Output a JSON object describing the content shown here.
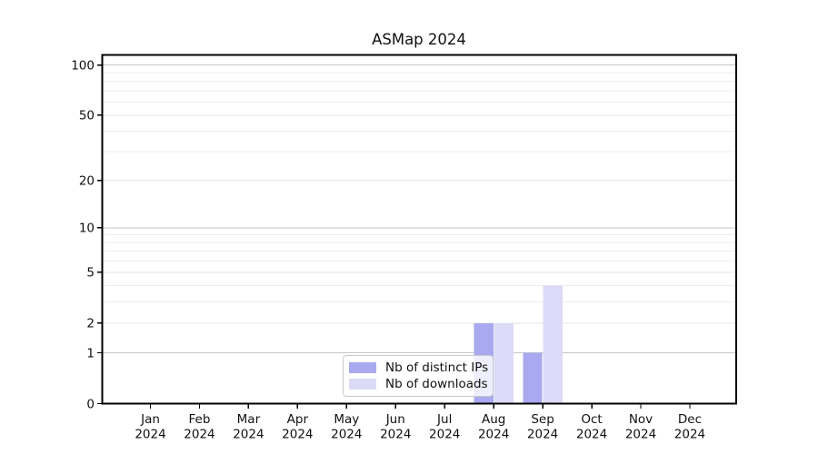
{
  "figure": {
    "title": "ASMap 2024"
  },
  "chart_data": {
    "type": "bar",
    "title": "ASMap 2024",
    "categories": [
      "Jan 2024",
      "Feb 2024",
      "Mar 2024",
      "Apr 2024",
      "May 2024",
      "Jun 2024",
      "Jul 2024",
      "Aug 2024",
      "Sep 2024",
      "Oct 2024",
      "Nov 2024",
      "Dec 2024"
    ],
    "month_labels": [
      "Jan",
      "Feb",
      "Mar",
      "Apr",
      "May",
      "Jun",
      "Jul",
      "Aug",
      "Sep",
      "Oct",
      "Nov",
      "Dec"
    ],
    "year_label": "2024",
    "series": [
      {
        "name": "Nb of distinct IPs",
        "color": "#a9a9ef",
        "values": [
          0,
          0,
          0,
          0,
          0,
          0,
          0,
          2,
          1,
          0,
          0,
          0
        ]
      },
      {
        "name": "Nb of downloads",
        "color": "#dbdbf8",
        "values": [
          0,
          0,
          0,
          0,
          0,
          0,
          0,
          2,
          4,
          0,
          0,
          0
        ]
      }
    ],
    "xlabel": "",
    "ylabel": "",
    "yscale": "log1p",
    "ylim": [
      0,
      115
    ],
    "yticks": [
      0,
      1,
      2,
      5,
      10,
      20,
      50,
      100
    ],
    "minor_yticks": [
      3,
      4,
      6,
      7,
      8,
      9,
      30,
      40,
      60,
      70,
      80,
      90
    ],
    "emphasized_gridlines": [
      1,
      10,
      100
    ],
    "grid": "horizontal",
    "legend_position": "lower-center"
  },
  "legend": {
    "items": [
      {
        "label": "Nb of distinct IPs",
        "color": "#a9a9ef"
      },
      {
        "label": "Nb of downloads",
        "color": "#dbdbf8"
      }
    ]
  },
  "colors": {
    "background": "#ffffff",
    "spine": "#000000",
    "tick_text": "#111111",
    "grid_emphasized": "#c6c6c6",
    "grid_major": "#e6e6e6",
    "grid_minor": "#ededed"
  }
}
